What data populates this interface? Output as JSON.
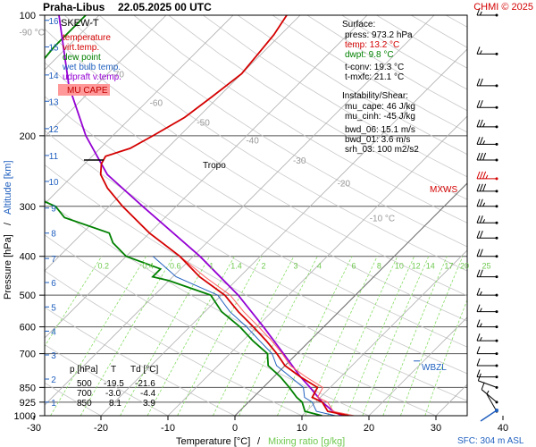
{
  "header": {
    "station": "Praha-Libus",
    "datetime": "22.05.2025 00 UTC",
    "copyright": "CHMI © 2025"
  },
  "legend": {
    "title": "SKEW-T",
    "items": [
      {
        "label": "temperature",
        "color": "#d40000"
      },
      {
        "label": "virt.temp.",
        "color": "#d40000"
      },
      {
        "label": "dew point",
        "color": "#008000"
      },
      {
        "label": "wet bulb temp.",
        "color": "#1f5fbf"
      },
      {
        "label": "udpraft v.temp.",
        "color": "#9400d3"
      }
    ],
    "badge": "MU CAPE",
    "badge_color": "#ff9999"
  },
  "surface": {
    "heading": "Surface:",
    "press": "press: 973.2 hPa",
    "temp": "temp: 13.2 °C",
    "dwpt": "dwpt: 9.8 °C",
    "tconv": "t-conv: 19.3 °C",
    "tmxfc": "t-mxfc: 21.1 °C"
  },
  "instability": {
    "heading": "Instability/Shear:",
    "lines": [
      "mu_cape: 46 J/kg",
      "mu_cinh: -45 J/kg",
      "bwd_06: 15.1 m/s",
      "bwd_01: 3.6 m/s",
      "srh_03: 100 m2/s2"
    ]
  },
  "table": {
    "headers": [
      "p [hPa]",
      "T",
      "Td [°C]"
    ],
    "rows": [
      [
        "500",
        "-19.5",
        "-21.6"
      ],
      [
        "700",
        "-3.0",
        "-4.4"
      ],
      [
        "850",
        "8.1",
        "3.9"
      ]
    ]
  },
  "labels": {
    "tropo": "Tropo",
    "mxws": "MXWS",
    "wbzl": "WBZL",
    "sfc": "SFC: 304 m ASL"
  },
  "chart_data": {
    "type": "line",
    "title": "Praha-Libus 22.05.2025 00 UTC",
    "xlabel": "Temperature [°C]",
    "xlabel_sep": "/",
    "xlabel2": "Mixing ratio [g/kg]",
    "ylabel": "Pressure [hPa]",
    "ylabel_sep": "/",
    "ylabel2": "Altitude [km]",
    "colors": {
      "temp": "#d40000",
      "dew": "#008000",
      "wet": "#1f5fbf",
      "parcel": "#9400d3",
      "mix": "#88dd66",
      "dry": "#888888"
    },
    "x_ticks": [
      -30,
      -20,
      -10,
      0,
      10,
      20,
      30,
      40
    ],
    "p_ticks": [
      100,
      200,
      300,
      400,
      500,
      600,
      700,
      850,
      925,
      1000
    ],
    "km_ticks": [
      "1",
      "2",
      "3",
      "4",
      "5",
      "6",
      "7",
      "8",
      "9",
      "10",
      "11",
      "12",
      "13",
      "14",
      "15",
      "16"
    ],
    "km_pressures": [
      925,
      810,
      705,
      615,
      535,
      465,
      405,
      350,
      303,
      260,
      224,
      192,
      164,
      141,
      120,
      103
    ],
    "mixing_ratio_labels": [
      "0.2",
      "0.4",
      "0.6",
      "1",
      "1.4",
      "2",
      "3",
      "4",
      "6",
      "8",
      "10",
      "12",
      "14",
      "17",
      "20",
      "25"
    ],
    "isotherm_labels": [
      {
        "t": "-90 °C",
        "p": 110
      },
      {
        "t": "-70",
        "p": 140
      },
      {
        "t": "-60",
        "p": 165
      },
      {
        "t": "-50",
        "p": 185
      },
      {
        "t": "-40",
        "p": 205
      },
      {
        "t": "-30",
        "p": 230
      },
      {
        "t": "-20",
        "p": 262
      },
      {
        "t": "-10 °C",
        "p": 320
      }
    ],
    "temperature": [
      [
        1000,
        17.0
      ],
      [
        975,
        13.2
      ],
      [
        925,
        11.0
      ],
      [
        900,
        8.8
      ],
      [
        850,
        8.1
      ],
      [
        800,
        4.0
      ],
      [
        750,
        0.0
      ],
      [
        700,
        -3.0
      ],
      [
        650,
        -6.5
      ],
      [
        600,
        -10.5
      ],
      [
        550,
        -15.0
      ],
      [
        500,
        -19.5
      ],
      [
        450,
        -26.0
      ],
      [
        400,
        -32.0
      ],
      [
        350,
        -40.0
      ],
      [
        300,
        -48.0
      ],
      [
        270,
        -53.0
      ],
      [
        250,
        -56.0
      ],
      [
        235,
        -57.5
      ],
      [
        225,
        -58.0
      ],
      [
        215,
        -55.5
      ],
      [
        200,
        -54.0
      ],
      [
        180,
        -52.0
      ],
      [
        160,
        -51.0
      ],
      [
        140,
        -50.0
      ],
      [
        125,
        -50.5
      ],
      [
        112,
        -51.0
      ],
      [
        100,
        -52.0
      ]
    ],
    "dewpoint": [
      [
        1000,
        13.0
      ],
      [
        975,
        9.8
      ],
      [
        925,
        8.0
      ],
      [
        900,
        6.5
      ],
      [
        850,
        3.9
      ],
      [
        800,
        1.0
      ],
      [
        750,
        -2.5
      ],
      [
        700,
        -4.4
      ],
      [
        650,
        -8.5
      ],
      [
        600,
        -12.5
      ],
      [
        550,
        -17.5
      ],
      [
        500,
        -21.6
      ],
      [
        460,
        -30.0
      ],
      [
        450,
        -33.0
      ],
      [
        430,
        -33.0
      ],
      [
        400,
        -40.0
      ],
      [
        370,
        -44.0
      ],
      [
        350,
        -46.0
      ],
      [
        320,
        -55.0
      ],
      [
        300,
        -58.0
      ],
      [
        270,
        -67.0
      ],
      [
        255,
        -69.5
      ],
      [
        240,
        -72.0
      ],
      [
        220,
        -75.0
      ],
      [
        200,
        -79.0
      ],
      [
        180,
        -80.0
      ],
      [
        150,
        -81.0
      ],
      [
        120,
        -82.0
      ],
      [
        100,
        -82.0
      ]
    ],
    "parcel": [
      [
        1000,
        16.0
      ],
      [
        975,
        14.0
      ],
      [
        925,
        11.0
      ],
      [
        850,
        7.0
      ],
      [
        800,
        4.0
      ],
      [
        700,
        -2.0
      ],
      [
        600,
        -9.0
      ],
      [
        500,
        -17.5
      ],
      [
        400,
        -29.0
      ],
      [
        300,
        -45.0
      ],
      [
        250,
        -55.0
      ],
      [
        200,
        -64.0
      ],
      [
        150,
        -74.0
      ],
      [
        100,
        -86.0
      ]
    ],
    "tropopause_p": 230,
    "wind_barbs": [
      {
        "p": 100,
        "dir": 270,
        "kt": 15
      },
      {
        "p": 125,
        "dir": 270,
        "kt": 15
      },
      {
        "p": 150,
        "dir": 270,
        "kt": 20
      },
      {
        "p": 170,
        "dir": 270,
        "kt": 20
      },
      {
        "p": 190,
        "dir": 270,
        "kt": 25
      },
      {
        "p": 210,
        "dir": 270,
        "kt": 25
      },
      {
        "p": 230,
        "dir": 270,
        "kt": 30
      },
      {
        "p": 256,
        "dir": 270,
        "kt": 35
      },
      {
        "p": 275,
        "dir": 270,
        "kt": 30
      },
      {
        "p": 300,
        "dir": 270,
        "kt": 25
      },
      {
        "p": 330,
        "dir": 270,
        "kt": 25
      },
      {
        "p": 360,
        "dir": 270,
        "kt": 20
      },
      {
        "p": 400,
        "dir": 270,
        "kt": 20
      },
      {
        "p": 450,
        "dir": 270,
        "kt": 20
      },
      {
        "p": 500,
        "dir": 270,
        "kt": 15
      },
      {
        "p": 550,
        "dir": 270,
        "kt": 15
      },
      {
        "p": 600,
        "dir": 270,
        "kt": 15
      },
      {
        "p": 650,
        "dir": 270,
        "kt": 15
      },
      {
        "p": 700,
        "dir": 270,
        "kt": 10
      },
      {
        "p": 750,
        "dir": 270,
        "kt": 10
      },
      {
        "p": 800,
        "dir": 270,
        "kt": 10
      },
      {
        "p": 850,
        "dir": 250,
        "kt": 10
      },
      {
        "p": 925,
        "dir": 230,
        "kt": 10
      },
      {
        "p": 975,
        "dir": 210,
        "kt": 5
      }
    ],
    "mxws_p": 256,
    "wbzl_p": 730,
    "grid": true
  }
}
